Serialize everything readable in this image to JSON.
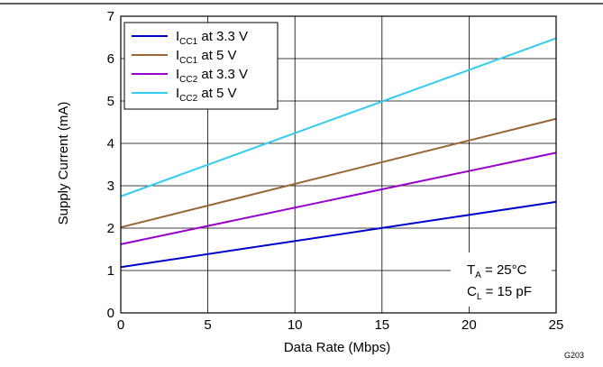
{
  "chart_data": {
    "type": "line",
    "xlabel": "Data Rate (Mbps)",
    "ylabel": "Supply Current (mA)",
    "xlim": [
      0,
      25
    ],
    "ylim": [
      0,
      7
    ],
    "xticks": [
      0,
      5,
      10,
      15,
      20,
      25
    ],
    "yticks": [
      0,
      1,
      2,
      3,
      4,
      5,
      6,
      7
    ],
    "grid": true,
    "legend_position": "top-left",
    "series": [
      {
        "name_main": "I",
        "name_sub": "CC1",
        "name_rest": " at 3.3 V",
        "color": "#0000cc",
        "x": [
          0,
          25
        ],
        "y": [
          1.08,
          2.62
        ]
      },
      {
        "name_main": "I",
        "name_sub": "CC1",
        "name_rest": " at 5 V",
        "color": "#996633",
        "x": [
          0,
          25
        ],
        "y": [
          2.02,
          4.58
        ]
      },
      {
        "name_main": "I",
        "name_sub": "CC2",
        "name_rest": " at 3.3 V",
        "color": "#9900cc",
        "x": [
          0,
          25
        ],
        "y": [
          1.62,
          3.78
        ]
      },
      {
        "name_main": "I",
        "name_sub": "CC2",
        "name_rest": " at 5 V",
        "color": "#33ccee",
        "x": [
          0,
          25
        ],
        "y": [
          2.75,
          6.48
        ]
      }
    ],
    "annotations": {
      "ta_main": "T",
      "ta_sub": "A",
      "ta_rest": " = 25°C",
      "cl_main": "C",
      "cl_sub": "L",
      "cl_rest": " = 15 pF"
    },
    "figure_id": "G203"
  }
}
